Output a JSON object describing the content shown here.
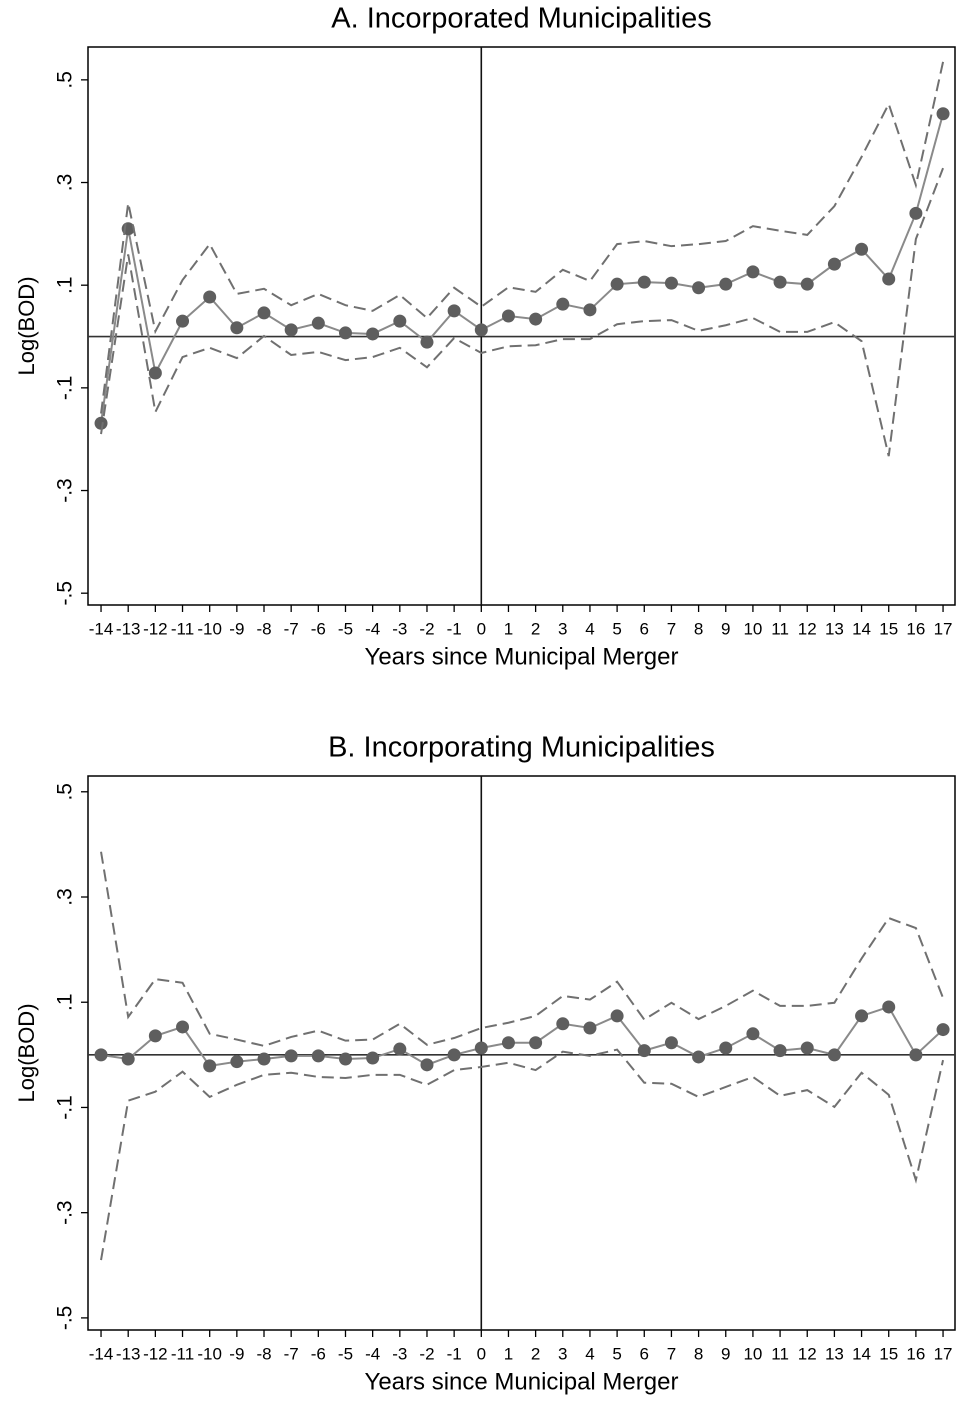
{
  "chart_data": [
    {
      "type": "line",
      "title": "A. Incorporated Municipalities",
      "x_label": "Years since Municipal Merger",
      "y_label": "Log(BOD)",
      "x": [
        -14,
        -13,
        -12,
        -11,
        -10,
        -9,
        -8,
        -7,
        -6,
        -5,
        -4,
        -3,
        -2,
        -1,
        0,
        1,
        2,
        3,
        4,
        5,
        6,
        7,
        8,
        9,
        10,
        11,
        12,
        13,
        14,
        15,
        16,
        17
      ],
      "series": [
        {
          "color": "#8a8a8a",
          "marker_color": "#5e5e5e",
          "dashed": false,
          "markers": true,
          "values": [
            -0.169,
            0.21,
            -0.071,
            0.03,
            0.077,
            0.017,
            0.046,
            0.013,
            0.026,
            0.007,
            0.005,
            0.03,
            -0.011,
            0.05,
            0.013,
            0.04,
            0.034,
            0.063,
            0.052,
            0.102,
            0.106,
            0.104,
            0.095,
            0.102,
            0.126,
            0.106,
            0.102,
            0.141,
            0.17,
            0.112,
            0.24,
            0.434
          ]
        },
        {
          "color": "#707070",
          "dashed": true,
          "markers": false,
          "values": [
            -0.15,
            0.26,
            0.01,
            0.11,
            0.18,
            0.083,
            0.093,
            0.061,
            0.083,
            0.061,
            0.05,
            0.081,
            0.036,
            0.095,
            0.058,
            0.096,
            0.087,
            0.13,
            0.108,
            0.18,
            0.186,
            0.176,
            0.18,
            0.186,
            0.215,
            0.206,
            0.198,
            0.254,
            0.35,
            0.453,
            0.295,
            0.535
          ]
        },
        {
          "color": "#707070",
          "dashed": true,
          "markers": false,
          "values": [
            -0.19,
            0.16,
            -0.147,
            -0.04,
            -0.022,
            -0.042,
            0.001,
            -0.036,
            -0.03,
            -0.046,
            -0.04,
            -0.022,
            -0.06,
            -0.003,
            -0.032,
            -0.019,
            -0.017,
            -0.005,
            -0.005,
            0.024,
            0.03,
            0.032,
            0.011,
            0.022,
            0.036,
            0.009,
            0.009,
            0.028,
            -0.009,
            -0.233,
            0.19,
            0.328
          ]
        }
      ],
      "xlim": [
        -14.48,
        17.44
      ],
      "ylim": [
        -0.523,
        0.564
      ],
      "xticks": [
        -14,
        -13,
        -12,
        -11,
        -10,
        -9,
        -8,
        -7,
        -6,
        -5,
        -4,
        -3,
        -2,
        -1,
        0,
        1,
        2,
        3,
        4,
        5,
        6,
        7,
        8,
        9,
        10,
        11,
        12,
        13,
        14,
        15,
        16,
        17
      ],
      "yticks": [
        {
          "value": -0.5,
          "label": "-.5"
        },
        {
          "value": -0.3,
          "label": "-.3"
        },
        {
          "value": -0.1,
          "label": "-.1"
        },
        {
          "value": 0.1,
          "label": ".1"
        },
        {
          "value": 0.3,
          "label": ".3"
        },
        {
          "value": 0.5,
          "label": ".5"
        }
      ],
      "reference_lines": {
        "x": 0,
        "y": 0
      },
      "grid": false
    },
    {
      "type": "line",
      "title": "B. Incorporating Municipalities",
      "x_label": "Years since Municipal Merger",
      "y_label": "Log(BOD)",
      "x": [
        -14,
        -13,
        -12,
        -11,
        -10,
        -9,
        -8,
        -7,
        -6,
        -5,
        -4,
        -3,
        -2,
        -1,
        0,
        1,
        2,
        3,
        4,
        5,
        6,
        7,
        8,
        9,
        10,
        11,
        12,
        13,
        14,
        15,
        16,
        17
      ],
      "series": [
        {
          "color": "#8a8a8a",
          "marker_color": "#5e5e5e",
          "dashed": false,
          "markers": true,
          "values": [
            0.0,
            -0.008,
            0.036,
            0.053,
            -0.021,
            -0.013,
            -0.008,
            -0.002,
            -0.002,
            -0.008,
            -0.006,
            0.011,
            -0.019,
            0.0,
            0.013,
            0.023,
            0.023,
            0.059,
            0.051,
            0.074,
            0.008,
            0.023,
            -0.004,
            0.013,
            0.04,
            0.008,
            0.013,
            0.0,
            0.074,
            0.091,
            0.0,
            0.048
          ]
        },
        {
          "color": "#707070",
          "dashed": true,
          "markers": false,
          "values": [
            0.386,
            0.072,
            0.144,
            0.137,
            0.04,
            0.029,
            0.017,
            0.034,
            0.046,
            0.027,
            0.029,
            0.059,
            0.019,
            0.032,
            0.051,
            0.061,
            0.074,
            0.112,
            0.105,
            0.139,
            0.067,
            0.099,
            0.068,
            0.093,
            0.122,
            0.093,
            0.093,
            0.099,
            0.183,
            0.26,
            0.241,
            0.108
          ]
        },
        {
          "color": "#707070",
          "dashed": true,
          "markers": false,
          "values": [
            -0.39,
            -0.087,
            -0.07,
            -0.032,
            -0.08,
            -0.057,
            -0.038,
            -0.034,
            -0.042,
            -0.044,
            -0.038,
            -0.038,
            -0.057,
            -0.029,
            -0.023,
            -0.015,
            -0.029,
            0.006,
            -0.002,
            0.01,
            -0.053,
            -0.055,
            -0.08,
            -0.061,
            -0.042,
            -0.078,
            -0.067,
            -0.099,
            -0.034,
            -0.076,
            -0.238,
            -0.01
          ]
        }
      ],
      "xlim": [
        -14.48,
        17.44
      ],
      "ylim": [
        -0.523,
        0.53
      ],
      "xticks": [
        -14,
        -13,
        -12,
        -11,
        -10,
        -9,
        -8,
        -7,
        -6,
        -5,
        -4,
        -3,
        -2,
        -1,
        0,
        1,
        2,
        3,
        4,
        5,
        6,
        7,
        8,
        9,
        10,
        11,
        12,
        13,
        14,
        15,
        16,
        17
      ],
      "yticks": [
        {
          "value": -0.5,
          "label": "-.5"
        },
        {
          "value": -0.3,
          "label": "-.3"
        },
        {
          "value": -0.1,
          "label": "-.1"
        },
        {
          "value": 0.1,
          "label": ".1"
        },
        {
          "value": 0.3,
          "label": ".3"
        },
        {
          "value": 0.5,
          "label": ".5"
        }
      ],
      "reference_lines": {
        "x": 0,
        "y": 0
      },
      "grid": false
    }
  ]
}
